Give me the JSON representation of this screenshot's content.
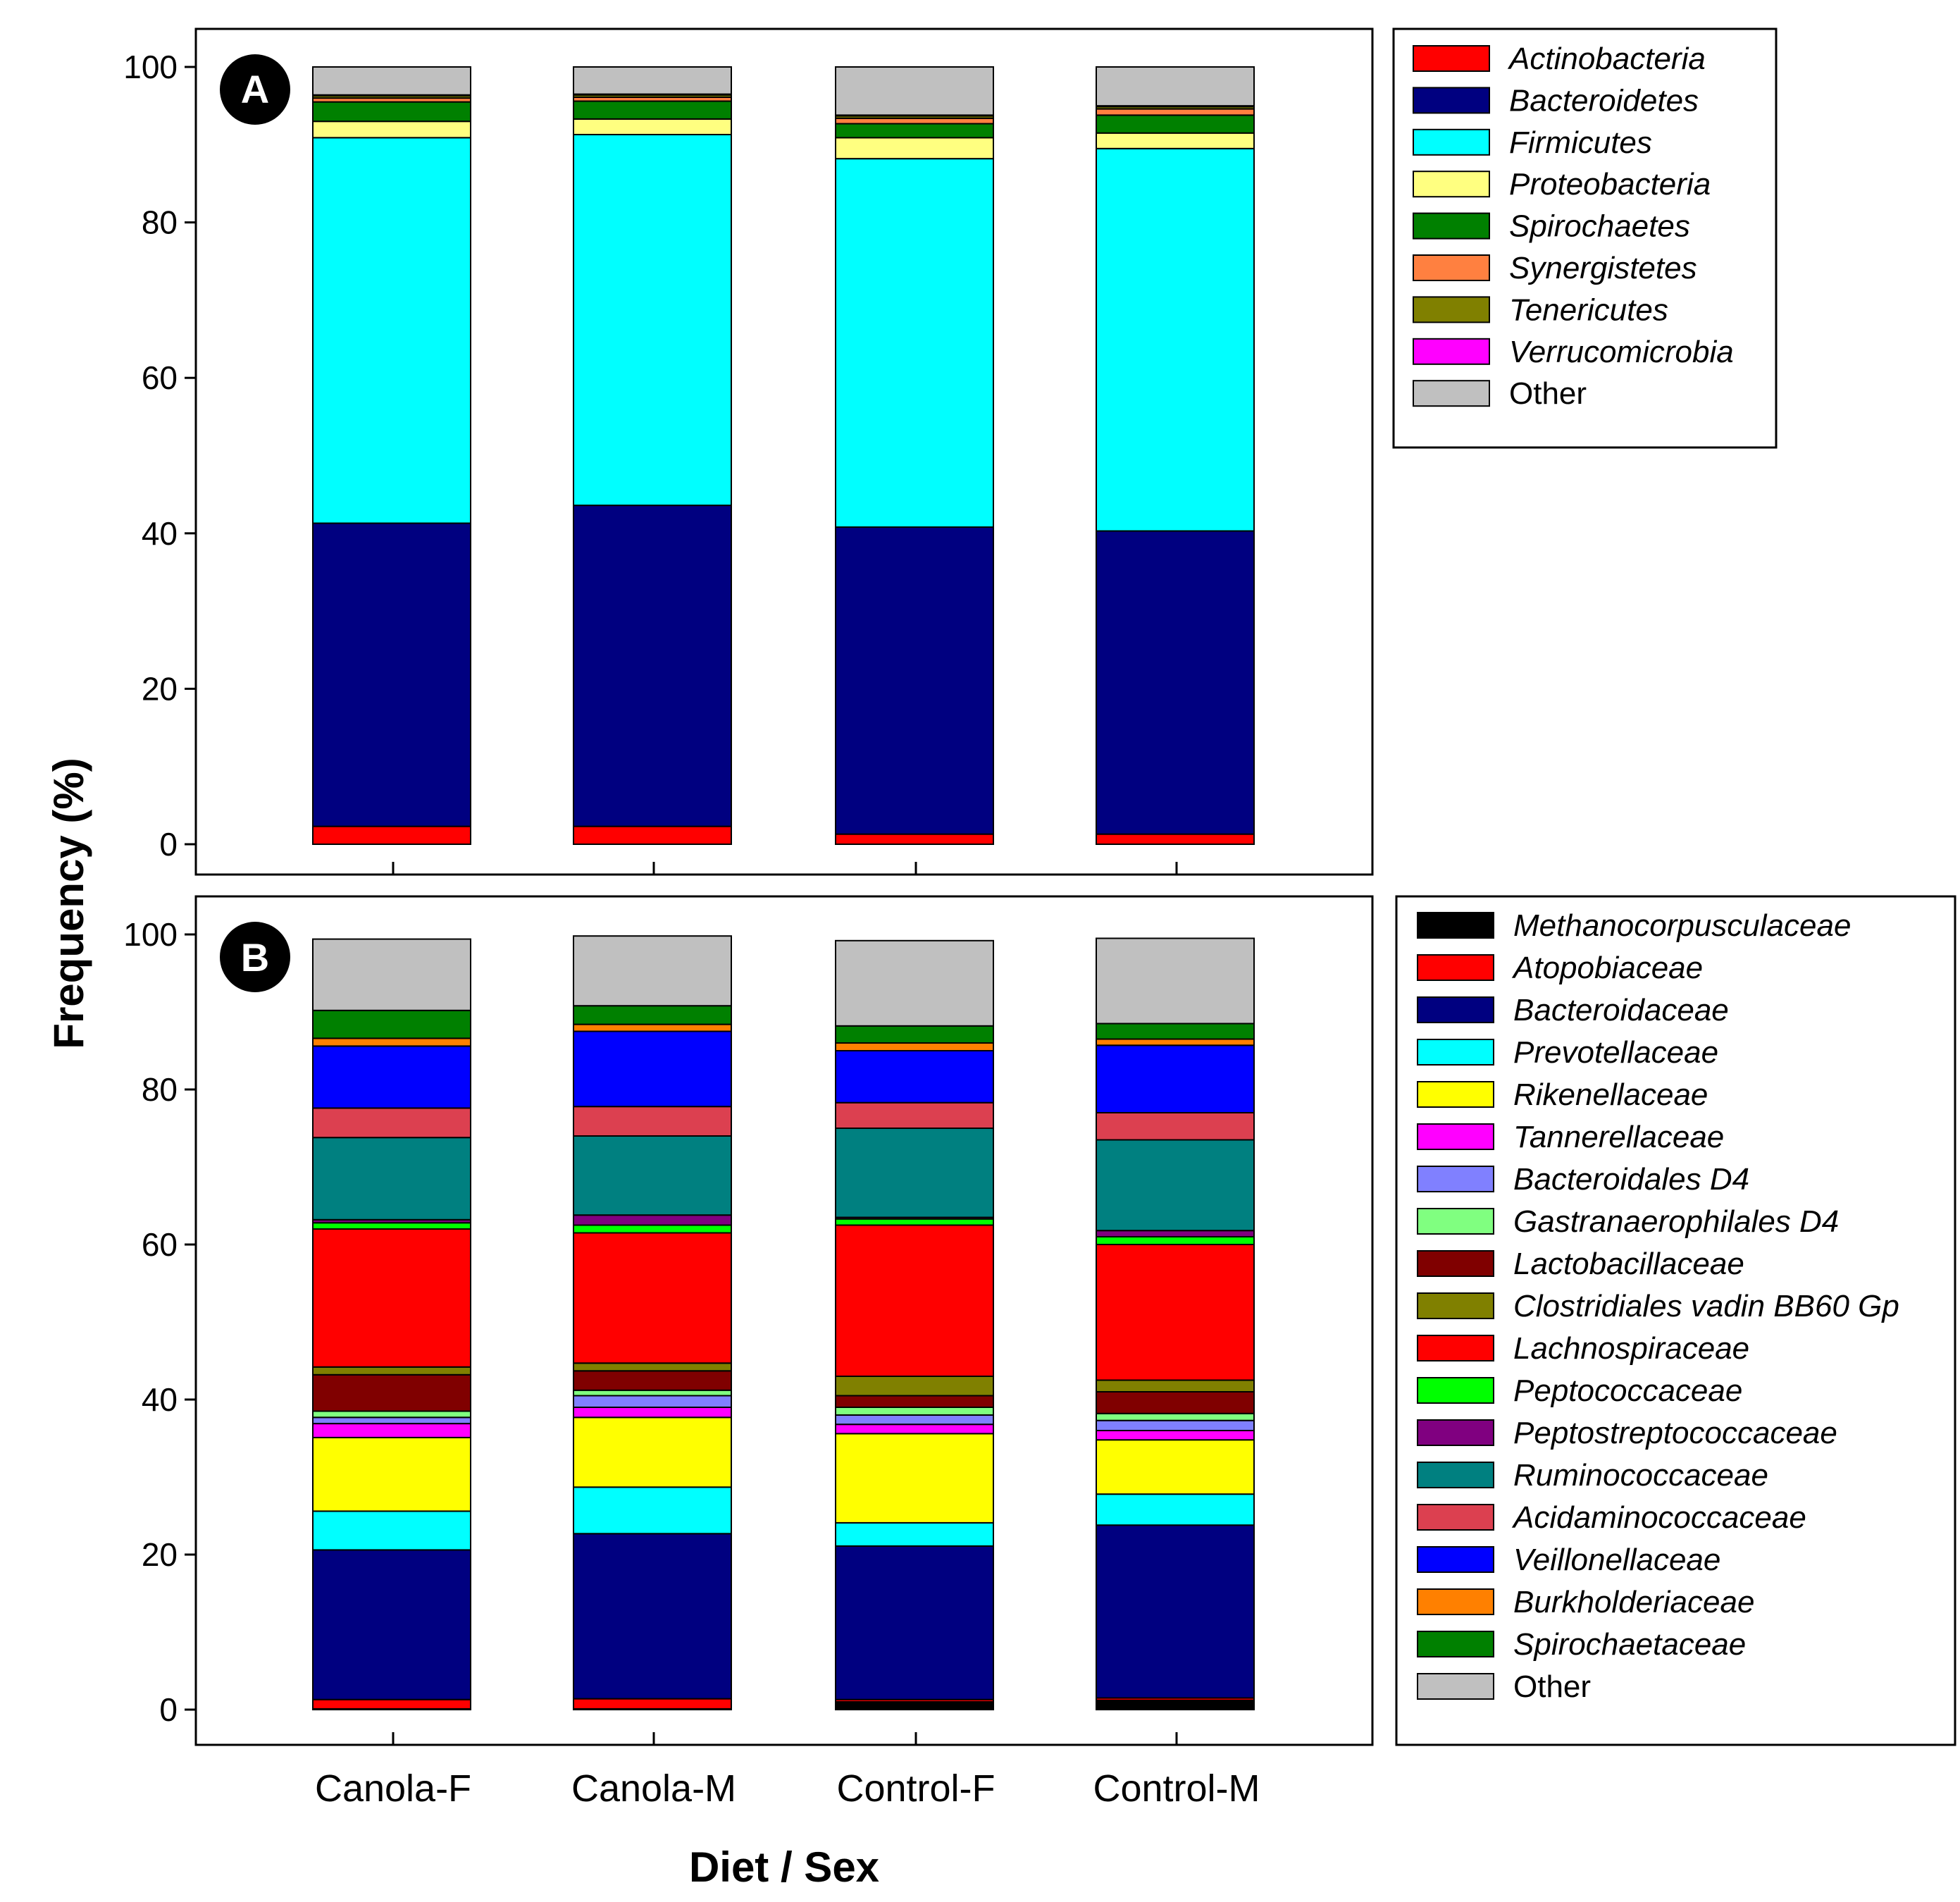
{
  "figure": {
    "ylabel": "Frequency (%)",
    "xlabel": "Diet / Sex"
  },
  "chart_data": [
    {
      "type": "bar",
      "stacked": true,
      "panel": "A",
      "ylim": [
        0,
        100
      ],
      "yticks": [
        "0",
        "20",
        "40",
        "60",
        "80",
        "100"
      ],
      "categories": [
        "Canola-F",
        "Canola-M",
        "Control-F",
        "Control-M"
      ],
      "series": [
        {
          "name": "Actinobacteria",
          "color": "#FF0000",
          "italic": true,
          "values": [
            2.3,
            2.3,
            1.3,
            1.3
          ]
        },
        {
          "name": "Bacteroidetes",
          "color": "#000080",
          "italic": true,
          "values": [
            39.0,
            41.3,
            39.5,
            39.0
          ]
        },
        {
          "name": "Firmicutes",
          "color": "#00FFFF",
          "italic": true,
          "values": [
            49.6,
            47.7,
            47.4,
            49.2
          ]
        },
        {
          "name": "Proteobacteria",
          "color": "#FFFF80",
          "italic": true,
          "values": [
            2.1,
            2.0,
            2.7,
            2.0
          ]
        },
        {
          "name": "Spirochaetes",
          "color": "#008000",
          "italic": true,
          "values": [
            2.5,
            2.3,
            1.8,
            2.3
          ]
        },
        {
          "name": "Synergistetes",
          "color": "#FF8040",
          "italic": true,
          "values": [
            0.5,
            0.5,
            0.7,
            0.8
          ]
        },
        {
          "name": "Tenericutes",
          "color": "#808000",
          "italic": true,
          "values": [
            0.3,
            0.3,
            0.3,
            0.3
          ]
        },
        {
          "name": "Verrucomicrobia",
          "color": "#FF00FF",
          "italic": true,
          "values": [
            0.1,
            0.1,
            0.1,
            0.1
          ]
        },
        {
          "name": "Other",
          "color": "#C0C0C0",
          "italic": false,
          "values": [
            3.6,
            3.5,
            6.2,
            5.0
          ]
        }
      ]
    },
    {
      "type": "bar",
      "stacked": true,
      "panel": "B",
      "ylim": [
        0,
        100
      ],
      "yticks": [
        "0",
        "20",
        "40",
        "60",
        "80",
        "100"
      ],
      "categories": [
        "Canola-F",
        "Canola-M",
        "Control-F",
        "Control-M"
      ],
      "series": [
        {
          "name": "Methanocorpusculaceae",
          "color": "#000000",
          "italic": true,
          "values": [
            0.1,
            0.1,
            1.0,
            1.2
          ]
        },
        {
          "name": "Atopobiaceae",
          "color": "#FF0000",
          "italic": true,
          "values": [
            1.2,
            1.3,
            0.3,
            0.3
          ]
        },
        {
          "name": "Bacteroidaceae",
          "color": "#000080",
          "italic": true,
          "values": [
            19.3,
            21.3,
            19.8,
            22.3
          ]
        },
        {
          "name": "Prevotellaceae",
          "color": "#00FFFF",
          "italic": true,
          "values": [
            5.0,
            6.0,
            3.0,
            4.0
          ]
        },
        {
          "name": "Rikenellaceae",
          "color": "#FFFF00",
          "italic": true,
          "values": [
            9.5,
            9.0,
            11.5,
            7.0
          ]
        },
        {
          "name": "Tannerellaceae",
          "color": "#FF00FF",
          "italic": true,
          "values": [
            1.8,
            1.3,
            1.2,
            1.2
          ]
        },
        {
          "name": "Bacteroidales D4",
          "color": "#8080FF",
          "italic": true,
          "values": [
            0.8,
            1.5,
            1.2,
            1.3
          ]
        },
        {
          "name": "Gastranaerophilales D4",
          "color": "#80FF80",
          "italic": true,
          "values": [
            0.8,
            0.7,
            1.0,
            0.9
          ]
        },
        {
          "name": "Lactobacillaceae",
          "color": "#800000",
          "italic": true,
          "values": [
            4.7,
            2.5,
            1.5,
            2.8
          ]
        },
        {
          "name": "Clostridiales vadin BB60 Gp",
          "color": "#808000",
          "italic": true,
          "values": [
            1.0,
            1.0,
            2.5,
            1.5
          ]
        },
        {
          "name": "Lachnospiraceae",
          "color": "#FF0000",
          "italic": true,
          "values": [
            17.8,
            16.8,
            19.5,
            17.5
          ]
        },
        {
          "name": "Peptococcaceae",
          "color": "#00FF00",
          "italic": true,
          "values": [
            0.8,
            1.0,
            0.8,
            1.0
          ]
        },
        {
          "name": "Peptostreptococcaceae",
          "color": "#800080",
          "italic": true,
          "values": [
            0.4,
            1.3,
            0.2,
            0.8
          ]
        },
        {
          "name": "Ruminococcaceae",
          "color": "#008080",
          "italic": true,
          "values": [
            10.6,
            10.2,
            11.5,
            11.7
          ]
        },
        {
          "name": "Acidaminococcaceae",
          "color": "#DC4050",
          "italic": true,
          "values": [
            3.8,
            3.8,
            3.3,
            3.5
          ]
        },
        {
          "name": "Veillonellaceae",
          "color": "#0000FF",
          "italic": true,
          "values": [
            8.0,
            9.7,
            6.7,
            8.7
          ]
        },
        {
          "name": "Burkholderiaceae",
          "color": "#FF8000",
          "italic": true,
          "values": [
            1.0,
            0.9,
            1.0,
            0.8
          ]
        },
        {
          "name": "Spirochaetaceae",
          "color": "#008000",
          "italic": true,
          "values": [
            3.6,
            2.4,
            2.2,
            2.0
          ]
        },
        {
          "name": "Other",
          "color": "#C0C0C0",
          "italic": false,
          "values": [
            9.2,
            9.0,
            11.0,
            11.0
          ]
        }
      ]
    }
  ]
}
